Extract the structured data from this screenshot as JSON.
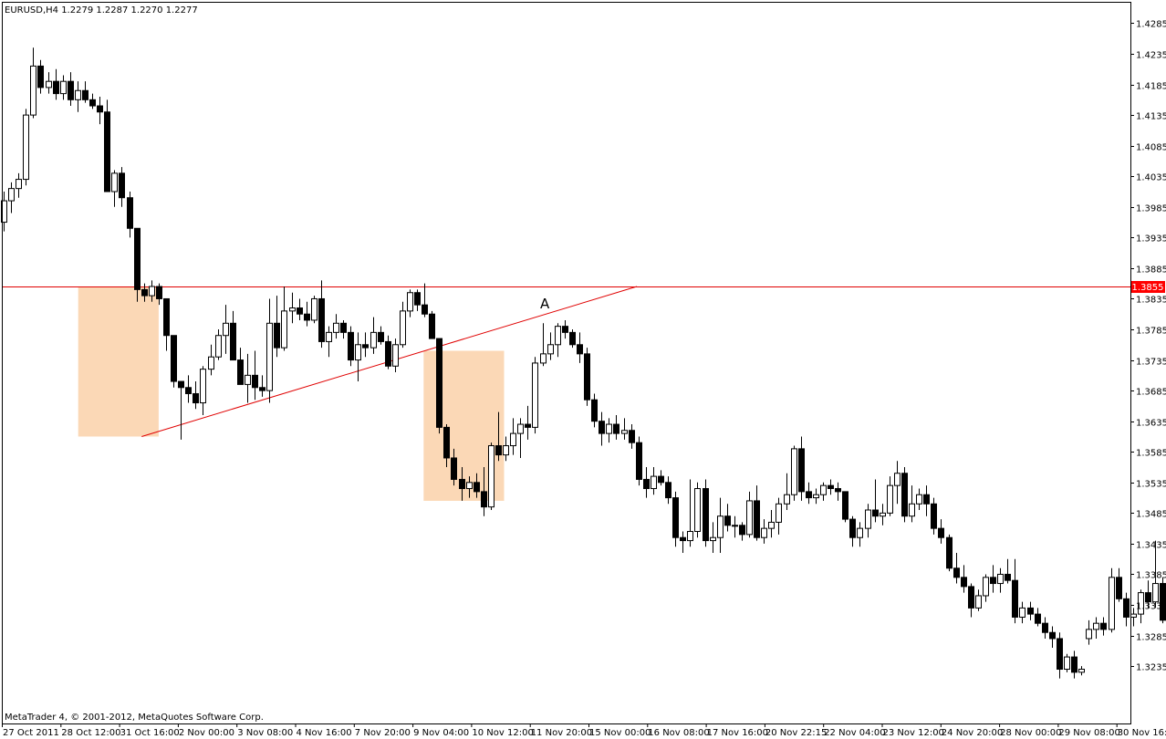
{
  "header": {
    "symbol_line": "EURUSD,H4  1.2279 1.2287 1.2270 1.2277"
  },
  "footer": {
    "copyright": "MetaTrader 4, © 2001-2012, MetaQuotes Software Corp."
  },
  "annotations": {
    "point_label": "A",
    "level_price_label": "1.3855"
  },
  "colors": {
    "background": "#ffffff",
    "bull_body": "#ffffff",
    "bear_body": "#000000",
    "candle_outline": "#000000",
    "level_line": "#e00000",
    "level_tag": "#ff0000",
    "zone_fill": "#fbd8b6"
  },
  "chart_data": {
    "type": "candlestick",
    "title": "EURUSD,H4",
    "xlabel": "",
    "ylabel": "",
    "ylim": [
      1.3195,
      1.4305
    ],
    "y_ticks": [
      "1.4285",
      "1.4235",
      "1.4185",
      "1.4135",
      "1.4085",
      "1.4035",
      "1.3985",
      "1.3935",
      "1.3885",
      "1.3835",
      "1.3785",
      "1.3735",
      "1.3685",
      "1.3635",
      "1.3585",
      "1.3535",
      "1.3485",
      "1.3435",
      "1.3385",
      "1.3335",
      "1.3285",
      "1.3235"
    ],
    "x_tick_labels": [
      "27 Oct 2011",
      "28 Oct 12:00",
      "31 Oct 16:00",
      "2 Nov 00:00",
      "3 Nov 08:00",
      "4 Nov 16:00",
      "7 Nov 20:00",
      "9 Nov 04:00",
      "10 Nov 12:00",
      "11 Nov 20:00",
      "15 Nov 00:00",
      "16 Nov 08:00",
      "17 Nov 16:00",
      "20 Nov 22:15",
      "22 Nov 04:00",
      "23 Nov 12:00",
      "24 Nov 20:00",
      "28 Nov 00:00",
      "29 Nov 08:00",
      "30 Nov 16:00"
    ],
    "grid": false,
    "horizontal_level": 1.3855,
    "trendline": {
      "from": [
        18.7,
        1.361
      ],
      "to": [
        85.8,
        1.3855
      ]
    },
    "zones": [
      {
        "x0": 10.1,
        "x1": 21.0,
        "y0": 1.3855,
        "y1": 1.361
      },
      {
        "x0": 56.9,
        "x1": 67.8,
        "y0": 1.375,
        "y1": 1.3505
      }
    ],
    "label_A": {
      "x": 73.3,
      "y": 1.3825
    },
    "candles": [
      [
        1.396,
        1.401,
        1.3945,
        1.3995
      ],
      [
        1.3995,
        1.4025,
        1.3975,
        1.4015
      ],
      [
        1.4015,
        1.404,
        1.4,
        1.403
      ],
      [
        1.403,
        1.4145,
        1.402,
        1.4135
      ],
      [
        1.4135,
        1.4245,
        1.413,
        1.4215
      ],
      [
        1.4215,
        1.4225,
        1.417,
        1.418
      ],
      [
        1.418,
        1.4205,
        1.417,
        1.419
      ],
      [
        1.419,
        1.421,
        1.416,
        1.417
      ],
      [
        1.417,
        1.42,
        1.416,
        1.419
      ],
      [
        1.419,
        1.4205,
        1.415,
        1.416
      ],
      [
        1.416,
        1.419,
        1.414,
        1.4175
      ],
      [
        1.4175,
        1.419,
        1.4155,
        1.416
      ],
      [
        1.416,
        1.417,
        1.4145,
        1.415
      ],
      [
        1.415,
        1.4165,
        1.412,
        1.414
      ],
      [
        1.414,
        1.416,
        1.401,
        1.401
      ],
      [
        1.401,
        1.4045,
        1.3985,
        1.404
      ],
      [
        1.404,
        1.405,
        1.3985,
        1.4
      ],
      [
        1.4,
        1.401,
        1.3935,
        1.395
      ],
      [
        1.395,
        1.3945,
        1.383,
        1.385
      ],
      [
        1.385,
        1.386,
        1.383,
        1.384
      ],
      [
        1.384,
        1.3865,
        1.383,
        1.3855
      ],
      [
        1.3855,
        1.386,
        1.3825,
        1.3835
      ],
      [
        1.3835,
        1.3835,
        1.375,
        1.3775
      ],
      [
        1.3775,
        1.3775,
        1.369,
        1.37
      ],
      [
        1.37,
        1.37,
        1.3605,
        1.369
      ],
      [
        1.369,
        1.371,
        1.3665,
        1.368
      ],
      [
        1.368,
        1.37,
        1.3655,
        1.3665
      ],
      [
        1.3665,
        1.3725,
        1.3645,
        1.372
      ],
      [
        1.372,
        1.376,
        1.371,
        1.374
      ],
      [
        1.374,
        1.3785,
        1.3735,
        1.3775
      ],
      [
        1.3775,
        1.3825,
        1.3745,
        1.3795
      ],
      [
        1.3795,
        1.3815,
        1.3735,
        1.3735
      ],
      [
        1.3735,
        1.3755,
        1.3695,
        1.3695
      ],
      [
        1.3695,
        1.3745,
        1.3665,
        1.371
      ],
      [
        1.371,
        1.375,
        1.367,
        1.369
      ],
      [
        1.369,
        1.371,
        1.3675,
        1.3685
      ],
      [
        1.3685,
        1.3835,
        1.3665,
        1.3795
      ],
      [
        1.3795,
        1.384,
        1.374,
        1.3755
      ],
      [
        1.3755,
        1.3855,
        1.375,
        1.3815
      ],
      [
        1.3815,
        1.3845,
        1.3795,
        1.382
      ],
      [
        1.382,
        1.3835,
        1.38,
        1.381
      ],
      [
        1.381,
        1.383,
        1.379,
        1.38
      ],
      [
        1.38,
        1.384,
        1.3795,
        1.3835
      ],
      [
        1.3835,
        1.3865,
        1.3755,
        1.3765
      ],
      [
        1.3765,
        1.379,
        1.374,
        1.378
      ],
      [
        1.378,
        1.381,
        1.377,
        1.3795
      ],
      [
        1.3795,
        1.38,
        1.377,
        1.378
      ],
      [
        1.378,
        1.379,
        1.3725,
        1.3735
      ],
      [
        1.3735,
        1.378,
        1.37,
        1.376
      ],
      [
        1.376,
        1.378,
        1.374,
        1.3755
      ],
      [
        1.3755,
        1.3805,
        1.3745,
        1.378
      ],
      [
        1.378,
        1.379,
        1.376,
        1.3765
      ],
      [
        1.3765,
        1.3775,
        1.372,
        1.3725
      ],
      [
        1.3725,
        1.377,
        1.3715,
        1.376
      ],
      [
        1.376,
        1.383,
        1.3755,
        1.3815
      ],
      [
        1.3815,
        1.385,
        1.3805,
        1.3845
      ],
      [
        1.3845,
        1.385,
        1.3815,
        1.3825
      ],
      [
        1.3825,
        1.386,
        1.3805,
        1.381
      ],
      [
        1.381,
        1.3815,
        1.377,
        1.377
      ],
      [
        1.377,
        1.377,
        1.3615,
        1.3625
      ],
      [
        1.3625,
        1.363,
        1.356,
        1.3575
      ],
      [
        1.3575,
        1.359,
        1.353,
        1.354
      ],
      [
        1.354,
        1.356,
        1.3505,
        1.3525
      ],
      [
        1.3525,
        1.3545,
        1.351,
        1.3535
      ],
      [
        1.3535,
        1.355,
        1.351,
        1.352
      ],
      [
        1.352,
        1.356,
        1.348,
        1.3495
      ],
      [
        1.3495,
        1.36,
        1.349,
        1.3595
      ],
      [
        1.3595,
        1.365,
        1.357,
        1.358
      ],
      [
        1.358,
        1.361,
        1.357,
        1.3595
      ],
      [
        1.3595,
        1.364,
        1.358,
        1.3615
      ],
      [
        1.3615,
        1.364,
        1.3575,
        1.363
      ],
      [
        1.363,
        1.366,
        1.3605,
        1.3625
      ],
      [
        1.3625,
        1.374,
        1.3615,
        1.373
      ],
      [
        1.373,
        1.3795,
        1.3725,
        1.3745
      ],
      [
        1.3745,
        1.378,
        1.3735,
        1.376
      ],
      [
        1.376,
        1.3795,
        1.374,
        1.379
      ],
      [
        1.379,
        1.38,
        1.377,
        1.378
      ],
      [
        1.378,
        1.3785,
        1.3755,
        1.376
      ],
      [
        1.376,
        1.378,
        1.373,
        1.3745
      ],
      [
        1.3745,
        1.3755,
        1.366,
        1.367
      ],
      [
        1.367,
        1.368,
        1.3625,
        1.3635
      ],
      [
        1.3635,
        1.365,
        1.3595,
        1.3615
      ],
      [
        1.3615,
        1.364,
        1.36,
        1.363
      ],
      [
        1.363,
        1.3645,
        1.3605,
        1.3615
      ],
      [
        1.3615,
        1.364,
        1.3605,
        1.362
      ],
      [
        1.362,
        1.363,
        1.359,
        1.36
      ],
      [
        1.36,
        1.361,
        1.353,
        1.354
      ],
      [
        1.354,
        1.356,
        1.351,
        1.3525
      ],
      [
        1.3525,
        1.356,
        1.3515,
        1.3545
      ],
      [
        1.3545,
        1.3555,
        1.353,
        1.3535
      ],
      [
        1.3535,
        1.3545,
        1.35,
        1.351
      ],
      [
        1.351,
        1.352,
        1.343,
        1.3445
      ],
      [
        1.3445,
        1.3455,
        1.342,
        1.344
      ],
      [
        1.344,
        1.354,
        1.343,
        1.3455
      ],
      [
        1.3455,
        1.3535,
        1.3445,
        1.3525
      ],
      [
        1.3525,
        1.354,
        1.343,
        1.344
      ],
      [
        1.344,
        1.347,
        1.342,
        1.3445
      ],
      [
        1.3445,
        1.351,
        1.342,
        1.348
      ],
      [
        1.348,
        1.35,
        1.3455,
        1.3465
      ],
      [
        1.3465,
        1.348,
        1.3445,
        1.3465
      ],
      [
        1.3465,
        1.347,
        1.344,
        1.345
      ],
      [
        1.345,
        1.352,
        1.3445,
        1.3505
      ],
      [
        1.3505,
        1.353,
        1.344,
        1.3445
      ],
      [
        1.3445,
        1.3475,
        1.3435,
        1.346
      ],
      [
        1.346,
        1.349,
        1.3445,
        1.347
      ],
      [
        1.347,
        1.351,
        1.345,
        1.35
      ],
      [
        1.35,
        1.355,
        1.349,
        1.3515
      ],
      [
        1.3515,
        1.3595,
        1.3505,
        1.359
      ],
      [
        1.359,
        1.361,
        1.3505,
        1.352
      ],
      [
        1.352,
        1.3535,
        1.35,
        1.351
      ],
      [
        1.351,
        1.3525,
        1.35,
        1.3515
      ],
      [
        1.3515,
        1.3535,
        1.3505,
        1.353
      ],
      [
        1.353,
        1.354,
        1.3515,
        1.3525
      ],
      [
        1.3525,
        1.3535,
        1.3505,
        1.352
      ],
      [
        1.352,
        1.352,
        1.347,
        1.3475
      ],
      [
        1.3475,
        1.348,
        1.343,
        1.3445
      ],
      [
        1.3445,
        1.347,
        1.343,
        1.346
      ],
      [
        1.346,
        1.35,
        1.3445,
        1.349
      ],
      [
        1.349,
        1.354,
        1.347,
        1.348
      ],
      [
        1.348,
        1.35,
        1.3465,
        1.3485
      ],
      [
        1.3485,
        1.3545,
        1.348,
        1.353
      ],
      [
        1.353,
        1.357,
        1.35,
        1.355
      ],
      [
        1.355,
        1.356,
        1.347,
        1.348
      ],
      [
        1.348,
        1.353,
        1.347,
        1.35
      ],
      [
        1.35,
        1.3525,
        1.349,
        1.3515
      ],
      [
        1.3515,
        1.353,
        1.348,
        1.35
      ],
      [
        1.35,
        1.351,
        1.345,
        1.346
      ],
      [
        1.346,
        1.3475,
        1.3435,
        1.3445
      ],
      [
        1.3445,
        1.345,
        1.339,
        1.3395
      ],
      [
        1.3395,
        1.342,
        1.337,
        1.338
      ],
      [
        1.338,
        1.34,
        1.3355,
        1.3365
      ],
      [
        1.3365,
        1.337,
        1.3315,
        1.333
      ],
      [
        1.333,
        1.336,
        1.3325,
        1.335
      ],
      [
        1.335,
        1.3385,
        1.334,
        1.338
      ],
      [
        1.338,
        1.34,
        1.3355,
        1.337
      ],
      [
        1.337,
        1.3395,
        1.3355,
        1.3385
      ],
      [
        1.3385,
        1.341,
        1.337,
        1.3375
      ],
      [
        1.3375,
        1.341,
        1.3305,
        1.3315
      ],
      [
        1.3315,
        1.334,
        1.3305,
        1.333
      ],
      [
        1.333,
        1.334,
        1.331,
        1.332
      ],
      [
        1.332,
        1.333,
        1.33,
        1.3305
      ],
      [
        1.3305,
        1.3315,
        1.328,
        1.329
      ],
      [
        1.329,
        1.33,
        1.3265,
        1.328
      ],
      [
        1.328,
        1.329,
        1.3215,
        1.323
      ],
      [
        1.323,
        1.3255,
        1.3225,
        1.325
      ],
      [
        1.325,
        1.326,
        1.3215,
        1.3225
      ],
      [
        1.3225,
        1.3235,
        1.322,
        1.323
      ],
      [
        1.328,
        1.331,
        1.327,
        1.3295
      ],
      [
        1.3295,
        1.3315,
        1.328,
        1.3305
      ],
      [
        1.3305,
        1.3315,
        1.3285,
        1.3295
      ],
      [
        1.3295,
        1.3395,
        1.329,
        1.338
      ],
      [
        1.338,
        1.3395,
        1.334,
        1.3345
      ],
      [
        1.3345,
        1.3355,
        1.33,
        1.3315
      ],
      [
        1.3315,
        1.333,
        1.33,
        1.332
      ],
      [
        1.332,
        1.336,
        1.3305,
        1.3355
      ],
      [
        1.3355,
        1.3375,
        1.333,
        1.334
      ],
      [
        1.334,
        1.344,
        1.333,
        1.337
      ],
      [
        1.337,
        1.338,
        1.3305,
        1.331
      ],
      [
        1.331,
        1.3345,
        1.33,
        1.333
      ],
      [
        1.333,
        1.3345,
        1.3305,
        1.332
      ],
      [
        1.332,
        1.3335,
        1.33,
        1.331
      ],
      [
        1.331,
        1.335,
        1.326,
        1.3265
      ],
      [
        1.3265,
        1.331,
        1.3255,
        1.3305
      ],
      [
        1.3305,
        1.353,
        1.33,
        1.3465
      ],
      [
        1.3465,
        1.3475,
        1.3425,
        1.344
      ],
      [
        1.344,
        1.346,
        1.343,
        1.3445
      ],
      [
        1.3445,
        1.3465,
        1.3435,
        1.345
      ]
    ]
  }
}
